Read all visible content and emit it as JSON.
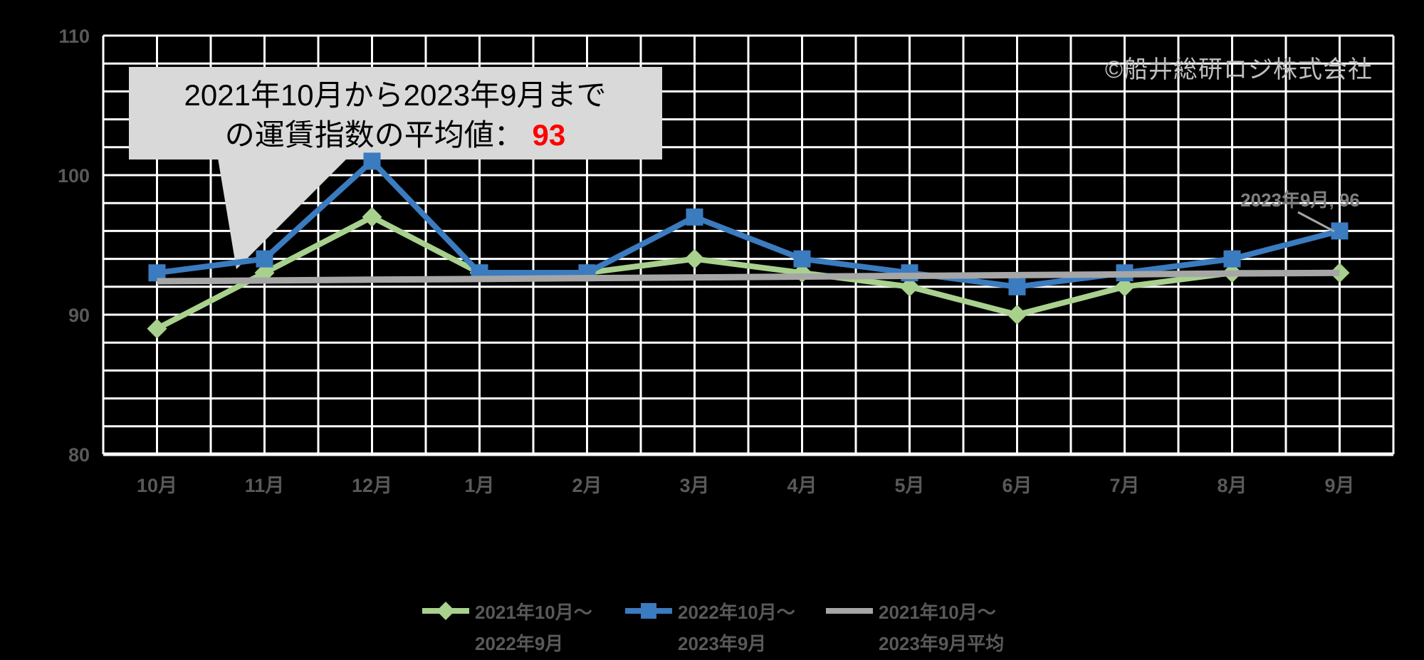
{
  "page": {
    "background": "#000000"
  },
  "copyright": "©船井総研ロジ株式会社",
  "callout": {
    "line1": "2021年10月から2023年9月まで",
    "line2_prefix": "の運賃指数の平均値：",
    "line2_value": "93",
    "bg": "#D9D9D9",
    "value_color": "#FF0000"
  },
  "annotation": {
    "text": "2023年9月, 96"
  },
  "legend": [
    {
      "line1": "2021年10月～",
      "line2": "2022年9月",
      "color": "#A9D18E",
      "marker": "diamond"
    },
    {
      "line1": "2022年10月～",
      "line2": "2023年9月",
      "color": "#3B7BBF",
      "marker": "square"
    },
    {
      "line1": "2021年10月～",
      "line2": "2023年9月平均",
      "color": "#A6A6A6",
      "marker": "line"
    }
  ],
  "chart_data": {
    "type": "line",
    "title": "",
    "xlabel": "",
    "ylabel": "",
    "categories": [
      "10月",
      "11月",
      "12月",
      "1月",
      "2月",
      "3月",
      "4月",
      "5月",
      "6月",
      "7月",
      "8月",
      "9月"
    ],
    "series": [
      {
        "name": "2021年10月～2022年9月",
        "color": "#A9D18E",
        "marker": "diamond",
        "line_width": 8,
        "values": [
          89,
          93,
          97,
          93,
          93,
          94,
          93,
          92,
          90,
          92,
          93,
          93
        ]
      },
      {
        "name": "2022年10月～2023年9月",
        "color": "#3B7BBF",
        "marker": "square",
        "line_width": 8,
        "values": [
          93,
          94,
          101,
          93,
          93,
          97,
          94,
          93,
          92,
          93,
          94,
          96
        ]
      },
      {
        "name": "2021年10月～2023年9月平均",
        "color": "#A6A6A6",
        "marker": "none",
        "line_width": 9,
        "values": [
          92.4,
          92.45,
          92.51,
          92.56,
          92.62,
          92.67,
          92.73,
          92.78,
          92.84,
          92.89,
          92.95,
          93.0
        ]
      }
    ],
    "average_value": 93,
    "annotated_point": {
      "series": "2022年10月～2023年9月",
      "category": "9月",
      "value": 96,
      "label": "2023年9月, 96"
    },
    "ylim": [
      80,
      110
    ],
    "y_ticks": [
      80,
      90,
      100,
      110
    ],
    "minor_grid_step_y": 2,
    "grid": true,
    "grid_color": "#FFFFFF",
    "background": "#000000",
    "legend_position": "bottom"
  }
}
